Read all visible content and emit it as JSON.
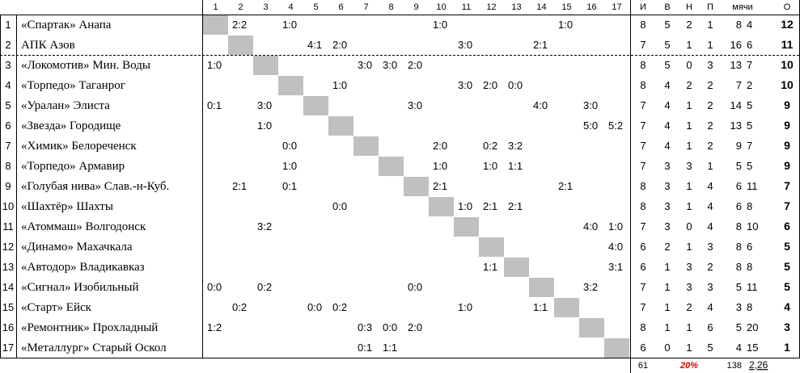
{
  "header": {
    "match_columns": [
      "1",
      "2",
      "3",
      "4",
      "5",
      "6",
      "7",
      "8",
      "9",
      "10",
      "11",
      "12",
      "13",
      "14",
      "15",
      "16",
      "17"
    ],
    "stat_columns": [
      "И",
      "В",
      "Н",
      "П",
      "мячи",
      "О"
    ]
  },
  "rows": [
    {
      "num": 1,
      "team": "«Спартак» Анапа",
      "results": [
        null,
        "2:2",
        null,
        "1:0",
        null,
        null,
        null,
        null,
        null,
        "1:0",
        null,
        null,
        null,
        null,
        "1:0",
        null,
        null
      ],
      "played": 8,
      "won": 5,
      "drawn": 2,
      "lost": 1,
      "goals_for": 8,
      "goals_against": 4,
      "points": 12
    },
    {
      "num": 2,
      "team": "АПК Азов",
      "results": [
        null,
        null,
        null,
        null,
        "4:1",
        "2:0",
        null,
        null,
        null,
        null,
        "3:0",
        null,
        null,
        "2:1",
        null,
        null,
        null
      ],
      "played": 7,
      "won": 5,
      "drawn": 1,
      "lost": 1,
      "goals_for": 16,
      "goals_against": 6,
      "points": 11
    },
    {
      "num": 3,
      "team": "«Локомотив» Мин. Воды",
      "results": [
        "1:0",
        null,
        null,
        null,
        null,
        null,
        "3:0",
        "3:0",
        "2:0",
        null,
        null,
        null,
        null,
        null,
        null,
        null,
        null
      ],
      "played": 8,
      "won": 5,
      "drawn": 0,
      "lost": 3,
      "goals_for": 13,
      "goals_against": 7,
      "points": 10
    },
    {
      "num": 4,
      "team": "«Торпедо» Таганрог",
      "results": [
        null,
        null,
        null,
        null,
        null,
        "1:0",
        null,
        null,
        null,
        null,
        "3:0",
        "2:0",
        "0:0",
        null,
        null,
        null,
        null
      ],
      "played": 8,
      "won": 4,
      "drawn": 2,
      "lost": 2,
      "goals_for": 7,
      "goals_against": 2,
      "points": 10
    },
    {
      "num": 5,
      "team": "«Уралан» Элиста",
      "results": [
        "0:1",
        null,
        "3:0",
        null,
        null,
        null,
        null,
        null,
        "3:0",
        null,
        null,
        null,
        null,
        "4:0",
        null,
        "3:0",
        null
      ],
      "played": 7,
      "won": 4,
      "drawn": 1,
      "lost": 2,
      "goals_for": 14,
      "goals_against": 5,
      "points": 9
    },
    {
      "num": 6,
      "team": "«Звезда» Городище",
      "results": [
        null,
        null,
        "1:0",
        null,
        null,
        null,
        null,
        null,
        null,
        null,
        null,
        null,
        null,
        null,
        null,
        "5:0",
        "5:2"
      ],
      "played": 7,
      "won": 4,
      "drawn": 1,
      "lost": 2,
      "goals_for": 13,
      "goals_against": 5,
      "points": 9
    },
    {
      "num": 7,
      "team": "«Химик» Белореченск",
      "results": [
        null,
        null,
        null,
        "0:0",
        null,
        null,
        null,
        null,
        null,
        "2:0",
        null,
        "0:2",
        "3:2",
        null,
        null,
        null,
        null
      ],
      "played": 7,
      "won": 4,
      "drawn": 1,
      "lost": 2,
      "goals_for": 9,
      "goals_against": 7,
      "points": 9
    },
    {
      "num": 8,
      "team": "«Торпедо» Армавир",
      "results": [
        null,
        null,
        null,
        "1:0",
        null,
        null,
        null,
        null,
        null,
        "1:0",
        null,
        "1:0",
        "1:1",
        null,
        null,
        null,
        null
      ],
      "played": 7,
      "won": 3,
      "drawn": 3,
      "lost": 1,
      "goals_for": 5,
      "goals_against": 5,
      "points": 9
    },
    {
      "num": 9,
      "team": "«Голубая нива» Слав.-н-Куб.",
      "results": [
        null,
        "2:1",
        null,
        "0:1",
        null,
        null,
        null,
        null,
        null,
        "2:1",
        null,
        null,
        null,
        null,
        "2:1",
        null,
        null
      ],
      "played": 8,
      "won": 3,
      "drawn": 1,
      "lost": 4,
      "goals_for": 6,
      "goals_against": 11,
      "points": 7
    },
    {
      "num": 10,
      "team": "«Шахтёр» Шахты",
      "results": [
        null,
        null,
        null,
        null,
        null,
        "0:0",
        null,
        null,
        null,
        null,
        "1:0",
        "2:1",
        "2:1",
        null,
        null,
        null,
        null
      ],
      "played": 8,
      "won": 3,
      "drawn": 1,
      "lost": 4,
      "goals_for": 6,
      "goals_against": 8,
      "points": 7
    },
    {
      "num": 11,
      "team": "«Атоммаш» Волгодонск",
      "results": [
        null,
        null,
        "3:2",
        null,
        null,
        null,
        null,
        null,
        null,
        null,
        null,
        null,
        null,
        null,
        null,
        "4:0",
        "1:0"
      ],
      "played": 7,
      "won": 3,
      "drawn": 0,
      "lost": 4,
      "goals_for": 8,
      "goals_against": 10,
      "points": 6
    },
    {
      "num": 12,
      "team": "«Динамо» Махачкала",
      "results": [
        null,
        null,
        null,
        null,
        null,
        null,
        null,
        null,
        null,
        null,
        null,
        null,
        null,
        null,
        null,
        null,
        "4:0"
      ],
      "played": 6,
      "won": 2,
      "drawn": 1,
      "lost": 3,
      "goals_for": 8,
      "goals_against": 6,
      "points": 5
    },
    {
      "num": 13,
      "team": "«Автодор» Владикавказ",
      "results": [
        null,
        null,
        null,
        null,
        null,
        null,
        null,
        null,
        null,
        null,
        null,
        "1:1",
        null,
        null,
        null,
        null,
        "3:1"
      ],
      "played": 6,
      "won": 1,
      "drawn": 3,
      "lost": 2,
      "goals_for": 8,
      "goals_against": 8,
      "points": 5
    },
    {
      "num": 14,
      "team": "«Сигнал» Изобильный",
      "results": [
        "0:0",
        null,
        "0:2",
        null,
        null,
        null,
        null,
        null,
        "0:0",
        null,
        null,
        null,
        null,
        null,
        null,
        "3:2",
        null
      ],
      "played": 7,
      "won": 1,
      "drawn": 3,
      "lost": 3,
      "goals_for": 5,
      "goals_against": 11,
      "points": 5
    },
    {
      "num": 15,
      "team": "«Старт» Ейск",
      "results": [
        null,
        "0:2",
        null,
        null,
        "0:0",
        "0:2",
        null,
        null,
        null,
        null,
        "1:0",
        null,
        null,
        "1:1",
        null,
        null,
        null
      ],
      "played": 7,
      "won": 1,
      "drawn": 2,
      "lost": 4,
      "goals_for": 3,
      "goals_against": 8,
      "points": 4
    },
    {
      "num": 16,
      "team": "«Ремонтник» Прохладный",
      "results": [
        "1:2",
        null,
        null,
        null,
        null,
        null,
        "0:3",
        "0:0",
        "2:0",
        null,
        null,
        null,
        null,
        null,
        null,
        null,
        null
      ],
      "played": 8,
      "won": 1,
      "drawn": 1,
      "lost": 6,
      "goals_for": 5,
      "goals_against": 20,
      "points": 3
    },
    {
      "num": 17,
      "team": "«Металлург» Старый Оскол",
      "results": [
        null,
        null,
        null,
        null,
        null,
        null,
        "0:1",
        "1:1",
        null,
        null,
        null,
        null,
        null,
        null,
        null,
        null,
        null
      ],
      "played": 6,
      "won": 0,
      "drawn": 1,
      "lost": 5,
      "goals_for": 4,
      "goals_against": 15,
      "points": 1
    }
  ],
  "footer": {
    "games": 61,
    "draw_share": "20%",
    "goals": 138,
    "average": "2,26"
  }
}
